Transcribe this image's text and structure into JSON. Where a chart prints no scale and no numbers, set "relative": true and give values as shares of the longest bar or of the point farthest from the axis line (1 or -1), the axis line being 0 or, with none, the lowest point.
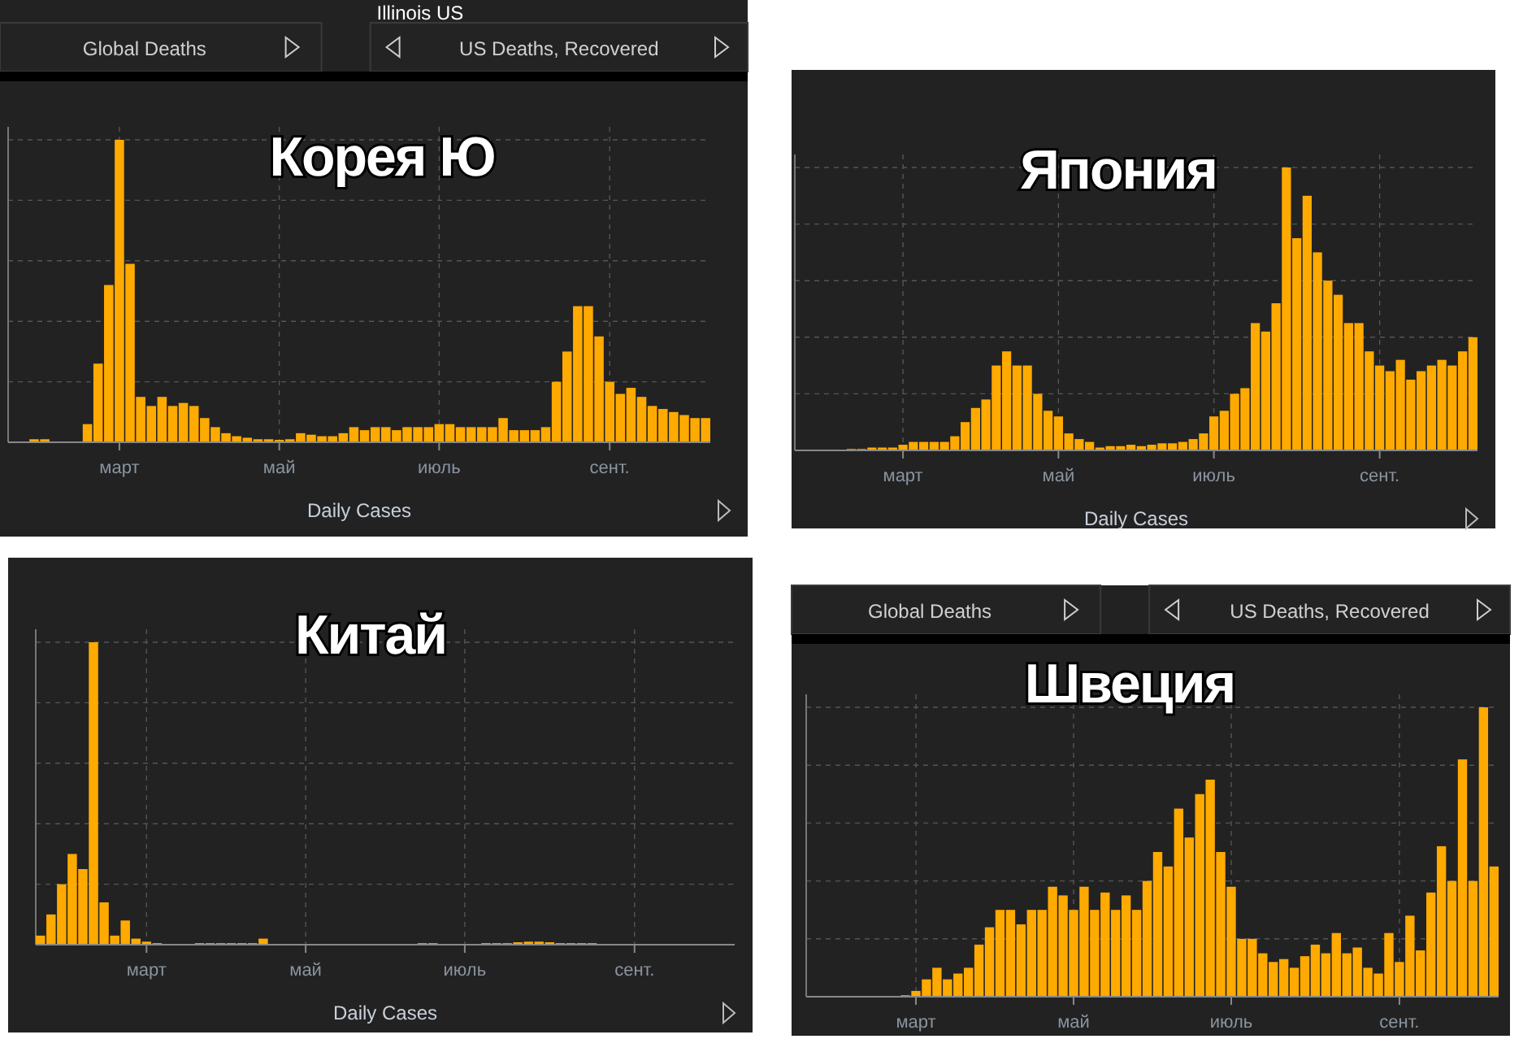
{
  "chart_data": [
    {
      "type": "bar",
      "title": "Корея Ю",
      "xlabel": "Daily Cases",
      "relative": true,
      "grid": true,
      "annotations": [
        "Global Deaths",
        "US Deaths, Recovered",
        "Illinois US"
      ],
      "categories": [
        null,
        null,
        null,
        null,
        null,
        null,
        null,
        null,
        null,
        null,
        "март",
        null,
        null,
        null,
        null,
        null,
        null,
        null,
        null,
        null,
        null,
        null,
        null,
        null,
        null,
        "май",
        null,
        null,
        null,
        null,
        null,
        null,
        null,
        null,
        null,
        null,
        null,
        null,
        null,
        null,
        "июль",
        null,
        null,
        null,
        null,
        null,
        null,
        null,
        null,
        null,
        null,
        null,
        null,
        null,
        null,
        null,
        "сент.",
        null,
        null,
        null,
        null,
        null,
        null,
        null,
        null,
        null
      ],
      "series": [
        {
          "color": "#ffaa00",
          "values": [
            0,
            0,
            0.01,
            0.01,
            0,
            0,
            0,
            0.06,
            0.26,
            0.52,
            1,
            0.59,
            0.15,
            0.12,
            0.15,
            0.12,
            0.13,
            0.12,
            0.08,
            0.05,
            0.03,
            0.02,
            0.015,
            0.01,
            0.01,
            0.008,
            0.01,
            0.03,
            0.025,
            0.02,
            0.02,
            0.03,
            0.05,
            0.04,
            0.05,
            0.05,
            0.04,
            0.05,
            0.05,
            0.05,
            0.06,
            0.06,
            0.05,
            0.05,
            0.05,
            0.05,
            0.08,
            0.04,
            0.04,
            0.04,
            0.05,
            0.2,
            0.3,
            0.45,
            0.45,
            0.35,
            0.2,
            0.16,
            0.18,
            0.15,
            0.12,
            0.11,
            0.1,
            0.09,
            0.08,
            0.08
          ]
        }
      ]
    },
    {
      "type": "bar",
      "title": "Япония",
      "xlabel": "Daily Cases",
      "relative": true,
      "grid": true,
      "categories": [
        null,
        null,
        null,
        null,
        null,
        null,
        null,
        null,
        null,
        null,
        "март",
        null,
        null,
        null,
        null,
        null,
        null,
        null,
        null,
        null,
        null,
        null,
        null,
        null,
        null,
        "май",
        null,
        null,
        null,
        null,
        null,
        null,
        null,
        null,
        null,
        null,
        null,
        null,
        null,
        null,
        "июль",
        null,
        null,
        null,
        null,
        null,
        null,
        null,
        null,
        null,
        null,
        null,
        null,
        null,
        null,
        null,
        "сент.",
        null,
        null,
        null,
        null,
        null,
        null,
        null,
        null,
        null
      ],
      "series": [
        {
          "color": "#ffaa00",
          "values": [
            0,
            0,
            0,
            0,
            0,
            0.005,
            0.005,
            0.01,
            0.01,
            0.01,
            0.02,
            0.03,
            0.03,
            0.03,
            0.03,
            0.05,
            0.1,
            0.15,
            0.18,
            0.3,
            0.35,
            0.3,
            0.3,
            0.2,
            0.14,
            0.12,
            0.06,
            0.04,
            0.03,
            0.01,
            0.015,
            0.015,
            0.02,
            0.015,
            0.02,
            0.025,
            0.025,
            0.03,
            0.04,
            0.06,
            0.12,
            0.14,
            0.2,
            0.22,
            0.45,
            0.42,
            0.52,
            1,
            0.75,
            0.9,
            0.7,
            0.6,
            0.55,
            0.45,
            0.45,
            0.35,
            0.3,
            0.28,
            0.32,
            0.25,
            0.28,
            0.3,
            0.32,
            0.3,
            0.35,
            0.4
          ]
        }
      ]
    },
    {
      "type": "bar",
      "title": "Китай",
      "xlabel": "Daily Cases",
      "relative": true,
      "grid": true,
      "categories": [
        null,
        null,
        null,
        null,
        null,
        null,
        null,
        null,
        null,
        null,
        "март",
        null,
        null,
        null,
        null,
        null,
        null,
        null,
        null,
        null,
        null,
        null,
        null,
        null,
        null,
        "май",
        null,
        null,
        null,
        null,
        null,
        null,
        null,
        null,
        null,
        null,
        null,
        null,
        null,
        null,
        "июль",
        null,
        null,
        null,
        null,
        null,
        null,
        null,
        null,
        null,
        null,
        null,
        null,
        null,
        null,
        null,
        "сент.",
        null,
        null,
        null,
        null,
        null,
        null,
        null,
        null,
        null
      ],
      "series": [
        {
          "color": "#ffaa00",
          "values": [
            0.03,
            0.1,
            0.2,
            0.3,
            0.25,
            1,
            0.14,
            0.03,
            0.08,
            0.02,
            0.01,
            0.005,
            0,
            0,
            0,
            0.005,
            0.005,
            0.005,
            0.005,
            0.005,
            0.005,
            0.02,
            0,
            0,
            0,
            0,
            0,
            0,
            0,
            0,
            0,
            0,
            0,
            0,
            0,
            0,
            0.005,
            0.005,
            0,
            0,
            0,
            0,
            0.005,
            0.005,
            0.005,
            0.008,
            0.01,
            0.01,
            0.008,
            0.005,
            0.005,
            0.005,
            0.005,
            0,
            0,
            0,
            0,
            0,
            0,
            0,
            0,
            0,
            0,
            0,
            0,
            0
          ]
        }
      ]
    },
    {
      "type": "bar",
      "title": "Швеция",
      "relative": true,
      "grid": true,
      "annotations": [
        "Global Deaths",
        "US Deaths, Recovered"
      ],
      "categories": [
        null,
        null,
        null,
        null,
        null,
        null,
        null,
        null,
        null,
        null,
        "март",
        null,
        null,
        null,
        null,
        null,
        null,
        null,
        null,
        null,
        null,
        null,
        null,
        null,
        null,
        "май",
        null,
        null,
        null,
        null,
        null,
        null,
        null,
        null,
        null,
        null,
        null,
        null,
        null,
        null,
        "июль",
        null,
        null,
        null,
        null,
        null,
        null,
        null,
        null,
        null,
        null,
        null,
        null,
        null,
        null,
        null,
        "сент.",
        null,
        null,
        null,
        null,
        null,
        null,
        null,
        null,
        null
      ],
      "series": [
        {
          "color": "#ffaa00",
          "values": [
            0,
            0,
            0,
            0,
            0,
            0,
            0,
            0,
            0,
            0.005,
            0.02,
            0.06,
            0.1,
            0.06,
            0.08,
            0.1,
            0.18,
            0.24,
            0.3,
            0.3,
            0.25,
            0.3,
            0.3,
            0.38,
            0.35,
            0.3,
            0.38,
            0.3,
            0.36,
            0.3,
            0.35,
            0.3,
            0.4,
            0.5,
            0.45,
            0.65,
            0.55,
            0.7,
            0.75,
            0.5,
            0.38,
            0.2,
            0.2,
            0.15,
            0.12,
            0.13,
            0.1,
            0.14,
            0.18,
            0.15,
            0.22,
            0.15,
            0.17,
            0.1,
            0.08,
            0.22,
            0.12,
            0.28,
            0.16,
            0.36,
            0.52,
            0.4,
            0.82,
            0.4,
            1,
            0.45
          ]
        }
      ]
    }
  ]
}
